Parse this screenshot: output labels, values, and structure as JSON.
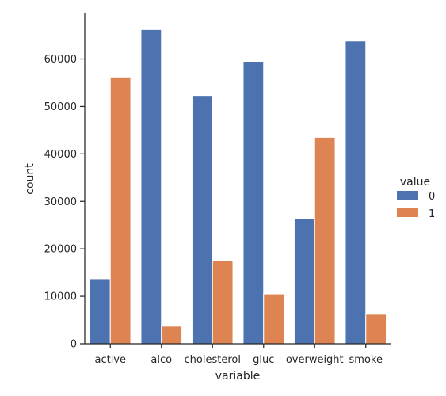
{
  "chart_data": {
    "type": "bar",
    "categories": [
      "active",
      "alco",
      "cholesterol",
      "gluc",
      "overweight",
      "smoke"
    ],
    "series": [
      {
        "name": "0",
        "color": "#4c72b0",
        "values": [
          13700,
          66200,
          52300,
          59500,
          26400,
          63800
        ]
      },
      {
        "name": "1",
        "color": "#dd8452",
        "values": [
          56200,
          3700,
          17600,
          10500,
          43500,
          6200
        ]
      }
    ],
    "xlabel": "variable",
    "ylabel": "count",
    "ylim": [
      0,
      69600
    ],
    "yticks": [
      0,
      10000,
      20000,
      30000,
      40000,
      50000,
      60000
    ],
    "ytick_labels": [
      "0",
      "10000",
      "20000",
      "30000",
      "40000",
      "50000",
      "60000"
    ],
    "legend": {
      "title": "value",
      "placement": "right"
    },
    "grid": false
  }
}
